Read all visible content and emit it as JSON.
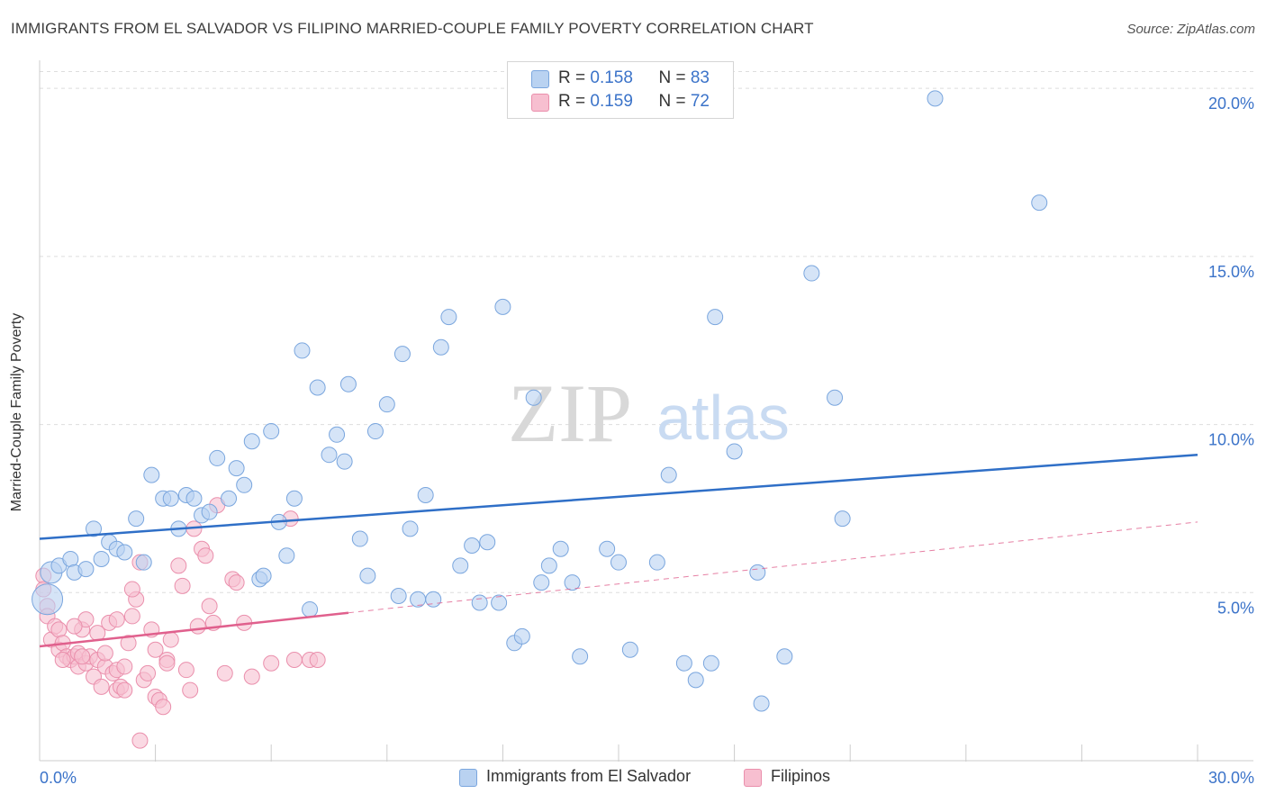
{
  "title": "IMMIGRANTS FROM EL SALVADOR VS FILIPINO MARRIED-COUPLE FAMILY POVERTY CORRELATION CHART",
  "source": "Source: ZipAtlas.com",
  "watermark": {
    "zip": "ZIP",
    "atlas": "atlas"
  },
  "legend": {
    "rows": [
      {
        "r_label": "R = ",
        "r_value": "0.158",
        "n_label": "N = ",
        "n_value": "83"
      },
      {
        "r_label": "R = ",
        "r_value": "0.159",
        "n_label": "N = ",
        "n_value": "72"
      }
    ]
  },
  "bottom_legend": [
    "Immigrants from El Salvador",
    "Filipinos"
  ],
  "colors": {
    "blue_fill": "#b9d2f1",
    "blue_stroke": "#7aa6de",
    "blue_line": "#2f6fc7",
    "pink_fill": "#f7bfd0",
    "pink_stroke": "#ea8fac",
    "pink_line": "#e0608d",
    "tick_label": "#3b73c9",
    "grid": "#dddddd"
  },
  "chart_data": {
    "type": "scatter",
    "title": "IMMIGRANTS FROM EL SALVADOR VS FILIPINO MARRIED-COUPLE FAMILY POVERTY CORRELATION CHART",
    "xlabel": "",
    "ylabel": "Married-Couple Family Poverty",
    "xlim": [
      0,
      30
    ],
    "ylim": [
      0,
      20.5
    ],
    "x_tick_labels": [
      {
        "value": 0,
        "label": "0.0%"
      },
      {
        "value": 30,
        "label": "30.0%"
      }
    ],
    "y_ticks": [
      {
        "value": 5,
        "label": "5.0%"
      },
      {
        "value": 10,
        "label": "10.0%"
      },
      {
        "value": 15,
        "label": "15.0%"
      },
      {
        "value": 20,
        "label": "20.0%"
      }
    ],
    "x_minor_ticks": [
      3,
      6,
      9,
      12,
      15,
      18,
      21,
      24,
      27,
      30
    ],
    "series": [
      {
        "name": "Immigrants from El Salvador",
        "color": "blue",
        "R": 0.158,
        "N": 83,
        "trend": {
          "x": [
            0,
            30
          ],
          "y": [
            6.6,
            9.1
          ]
        },
        "points": [
          [
            0.2,
            4.8
          ],
          [
            0.3,
            5.6
          ],
          [
            0.5,
            5.8
          ],
          [
            0.8,
            6.0
          ],
          [
            0.9,
            5.6
          ],
          [
            1.2,
            5.7
          ],
          [
            1.4,
            6.9
          ],
          [
            1.6,
            6.0
          ],
          [
            1.8,
            6.5
          ],
          [
            2.0,
            6.3
          ],
          [
            2.2,
            6.2
          ],
          [
            2.5,
            7.2
          ],
          [
            2.7,
            5.9
          ],
          [
            2.9,
            8.5
          ],
          [
            3.2,
            7.8
          ],
          [
            3.4,
            7.8
          ],
          [
            3.6,
            6.9
          ],
          [
            3.8,
            7.9
          ],
          [
            4.0,
            7.8
          ],
          [
            4.2,
            7.3
          ],
          [
            4.4,
            7.4
          ],
          [
            4.6,
            9.0
          ],
          [
            4.9,
            7.8
          ],
          [
            5.1,
            8.7
          ],
          [
            5.3,
            8.2
          ],
          [
            5.5,
            9.5
          ],
          [
            5.7,
            5.4
          ],
          [
            5.8,
            5.5
          ],
          [
            6.0,
            9.8
          ],
          [
            6.2,
            7.1
          ],
          [
            6.4,
            6.1
          ],
          [
            6.6,
            7.8
          ],
          [
            6.8,
            12.2
          ],
          [
            7.0,
            4.5
          ],
          [
            7.2,
            11.1
          ],
          [
            7.5,
            9.1
          ],
          [
            7.7,
            9.7
          ],
          [
            7.9,
            8.9
          ],
          [
            8.0,
            11.2
          ],
          [
            8.3,
            6.6
          ],
          [
            8.5,
            5.5
          ],
          [
            8.7,
            9.8
          ],
          [
            9.0,
            10.6
          ],
          [
            9.3,
            4.9
          ],
          [
            9.4,
            12.1
          ],
          [
            9.6,
            6.9
          ],
          [
            9.8,
            4.8
          ],
          [
            10.0,
            7.9
          ],
          [
            10.2,
            4.8
          ],
          [
            10.4,
            12.3
          ],
          [
            10.6,
            13.2
          ],
          [
            10.9,
            5.8
          ],
          [
            11.2,
            6.4
          ],
          [
            11.4,
            4.7
          ],
          [
            11.6,
            6.5
          ],
          [
            11.9,
            4.7
          ],
          [
            12.0,
            13.5
          ],
          [
            12.3,
            3.5
          ],
          [
            12.5,
            3.7
          ],
          [
            12.8,
            10.8
          ],
          [
            13.0,
            5.3
          ],
          [
            13.2,
            5.8
          ],
          [
            13.5,
            6.3
          ],
          [
            13.8,
            5.3
          ],
          [
            14.0,
            3.1
          ],
          [
            14.7,
            6.3
          ],
          [
            15.0,
            5.9
          ],
          [
            15.3,
            3.3
          ],
          [
            16.0,
            5.9
          ],
          [
            16.3,
            8.5
          ],
          [
            16.7,
            2.9
          ],
          [
            17.0,
            2.4
          ],
          [
            17.4,
            2.9
          ],
          [
            17.5,
            13.2
          ],
          [
            18.0,
            9.2
          ],
          [
            18.6,
            5.6
          ],
          [
            18.7,
            1.7
          ],
          [
            19.3,
            3.1
          ],
          [
            20.0,
            14.5
          ],
          [
            20.6,
            10.8
          ],
          [
            20.8,
            7.2
          ],
          [
            23.2,
            19.7
          ],
          [
            25.9,
            16.6
          ]
        ]
      },
      {
        "name": "Filipinos",
        "color": "pink",
        "R": 0.159,
        "N": 72,
        "trend": {
          "x": [
            0,
            8.0
          ],
          "y": [
            3.4,
            4.4
          ]
        },
        "trend_extension": {
          "x": [
            8.0,
            30
          ],
          "y": [
            4.4,
            7.1
          ]
        },
        "points": [
          [
            0.1,
            5.5
          ],
          [
            0.1,
            5.1
          ],
          [
            0.2,
            4.6
          ],
          [
            0.2,
            4.3
          ],
          [
            0.3,
            3.6
          ],
          [
            0.4,
            4.0
          ],
          [
            0.5,
            3.9
          ],
          [
            0.5,
            3.3
          ],
          [
            0.6,
            3.5
          ],
          [
            0.7,
            3.1
          ],
          [
            0.8,
            3.0
          ],
          [
            0.9,
            3.1
          ],
          [
            1.0,
            3.2
          ],
          [
            1.0,
            2.8
          ],
          [
            1.1,
            3.9
          ],
          [
            1.2,
            2.9
          ],
          [
            1.3,
            3.1
          ],
          [
            1.4,
            2.5
          ],
          [
            1.5,
            3.8
          ],
          [
            1.5,
            3.0
          ],
          [
            1.6,
            2.2
          ],
          [
            1.7,
            2.8
          ],
          [
            1.7,
            3.2
          ],
          [
            1.8,
            4.1
          ],
          [
            1.9,
            2.6
          ],
          [
            2.0,
            2.1
          ],
          [
            2.0,
            2.7
          ],
          [
            2.1,
            2.2
          ],
          [
            2.2,
            2.1
          ],
          [
            2.2,
            2.8
          ],
          [
            2.3,
            3.5
          ],
          [
            2.4,
            4.3
          ],
          [
            2.5,
            4.8
          ],
          [
            2.6,
            5.9
          ],
          [
            2.7,
            2.4
          ],
          [
            2.8,
            2.6
          ],
          [
            2.9,
            3.9
          ],
          [
            3.0,
            1.9
          ],
          [
            3.1,
            1.8
          ],
          [
            3.2,
            1.6
          ],
          [
            3.3,
            3.0
          ],
          [
            3.3,
            2.9
          ],
          [
            3.4,
            3.6
          ],
          [
            3.6,
            5.8
          ],
          [
            3.7,
            5.2
          ],
          [
            3.9,
            2.1
          ],
          [
            4.0,
            6.9
          ],
          [
            4.1,
            4.0
          ],
          [
            4.2,
            6.3
          ],
          [
            4.3,
            6.1
          ],
          [
            4.4,
            4.6
          ],
          [
            4.6,
            7.6
          ],
          [
            4.8,
            2.6
          ],
          [
            5.0,
            5.4
          ],
          [
            5.1,
            5.3
          ],
          [
            5.3,
            4.1
          ],
          [
            5.5,
            2.5
          ],
          [
            6.0,
            2.9
          ],
          [
            6.5,
            7.2
          ],
          [
            6.6,
            3.0
          ],
          [
            7.0,
            3.0
          ],
          [
            7.2,
            3.0
          ],
          [
            2.6,
            0.6
          ],
          [
            1.2,
            4.2
          ],
          [
            0.6,
            3.0
          ],
          [
            0.9,
            4.0
          ],
          [
            1.1,
            3.1
          ],
          [
            2.0,
            4.2
          ],
          [
            2.4,
            5.1
          ],
          [
            3.0,
            3.3
          ],
          [
            3.8,
            2.7
          ],
          [
            4.5,
            4.1
          ]
        ]
      }
    ]
  }
}
